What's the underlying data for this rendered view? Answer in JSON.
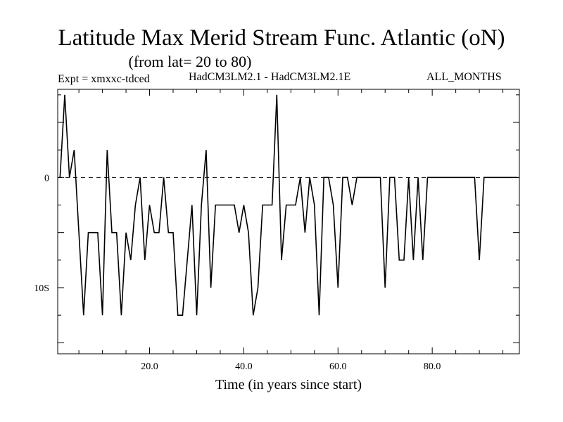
{
  "chart_data": {
    "type": "line",
    "title": "Latitude Max Merid Stream Func. Atlantic (oN)",
    "subtitle": "(from lat= 20 to 80)",
    "annotations": {
      "left": "Expt = xmxxc-tdced",
      "center": "HadCM3LM2.1 - HadCM3LM2.1E",
      "right": "ALL_MONTHS"
    },
    "xlabel": "Time (in years since start)",
    "ylabel": "",
    "xlim": [
      0.5,
      98.5
    ],
    "ylim": [
      -16,
      8
    ],
    "x_ticks": [
      20,
      40,
      60,
      80
    ],
    "x_tick_labels": [
      "20.0",
      "40.0",
      "60.0",
      "80.0"
    ],
    "y_ticks": [
      0,
      -10
    ],
    "y_tick_labels": [
      "0",
      "10S"
    ],
    "reference_line": {
      "y": 0,
      "style": "dashed"
    },
    "grid": false,
    "series": [
      {
        "x": [
          1,
          2,
          3,
          4,
          5,
          6,
          7,
          8,
          9,
          10,
          11,
          12,
          13,
          14,
          15,
          16,
          17,
          18,
          19,
          20,
          21,
          22,
          23,
          24,
          25,
          26,
          27,
          28,
          29,
          30,
          31,
          32,
          33,
          34,
          35,
          36,
          37,
          38,
          39,
          40,
          41,
          42,
          43,
          44,
          45,
          46,
          47,
          48,
          49,
          50,
          51,
          52,
          53,
          54,
          55,
          56,
          57,
          58,
          59,
          60,
          61,
          62,
          63,
          64,
          65,
          66,
          67,
          68,
          69,
          70,
          71,
          72,
          73,
          74,
          75,
          76,
          77,
          78,
          79,
          80,
          81,
          82,
          83,
          84,
          85,
          86,
          87,
          88,
          89,
          90,
          91,
          92,
          93,
          94,
          95,
          96,
          97,
          98
        ],
        "values": [
          0,
          7.5,
          0,
          2.5,
          -5,
          -12.5,
          -5,
          -5,
          -5,
          -12.5,
          2.5,
          -5,
          -5,
          -12.5,
          -5,
          -7.5,
          -2.5,
          0,
          -7.5,
          -2.5,
          -5,
          -5,
          0,
          -5,
          -5,
          -12.5,
          -12.5,
          -7.5,
          -2.5,
          -12.5,
          -2.5,
          2.5,
          -10,
          -2.5,
          -2.5,
          -2.5,
          -2.5,
          -2.5,
          -5,
          -2.5,
          -5,
          -12.5,
          -10,
          -2.5,
          -2.5,
          -2.5,
          7.5,
          -7.5,
          -2.5,
          -2.5,
          -2.5,
          0,
          -5,
          0,
          -2.5,
          -12.5,
          0,
          0,
          -2.5,
          -10,
          0,
          0,
          -2.5,
          0,
          0,
          0,
          0,
          0,
          0,
          -10,
          0,
          0,
          -7.5,
          -7.5,
          0,
          -7.5,
          0,
          -7.5,
          0,
          0,
          0,
          0,
          0,
          0,
          0,
          0,
          0,
          0,
          0,
          -7.5,
          0,
          0,
          0,
          0,
          0,
          0,
          0,
          0
        ]
      }
    ]
  }
}
